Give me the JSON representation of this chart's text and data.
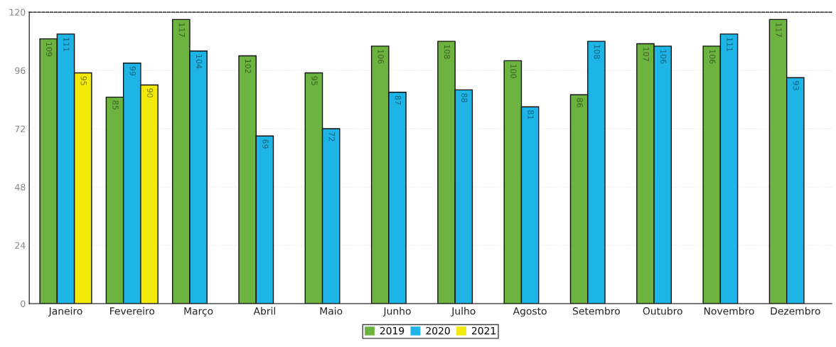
{
  "chart_data": {
    "type": "bar",
    "categories": [
      "Janeiro",
      "Fevereiro",
      "Março",
      "Abril",
      "Maio",
      "Junho",
      "Julho",
      "Agosto",
      "Setembro",
      "Outubro",
      "Novembro",
      "Dezembro"
    ],
    "series": [
      {
        "name": "2019",
        "color": "#6db33f",
        "values": [
          109,
          85,
          117,
          102,
          95,
          106,
          108,
          100,
          86,
          107,
          106,
          117
        ]
      },
      {
        "name": "2020",
        "color": "#1eb4e6",
        "values": [
          111,
          99,
          104,
          69,
          72,
          87,
          88,
          81,
          108,
          106,
          111,
          93
        ]
      },
      {
        "name": "2021",
        "color": "#f2ea0a",
        "values": [
          95,
          90,
          null,
          null,
          null,
          null,
          null,
          null,
          null,
          null,
          null,
          null
        ]
      }
    ],
    "ylim": [
      0,
      120
    ],
    "yticks": [
      0,
      24,
      48,
      72,
      96,
      120
    ],
    "grid": "y",
    "legend": "bottom",
    "data_labels": true
  }
}
